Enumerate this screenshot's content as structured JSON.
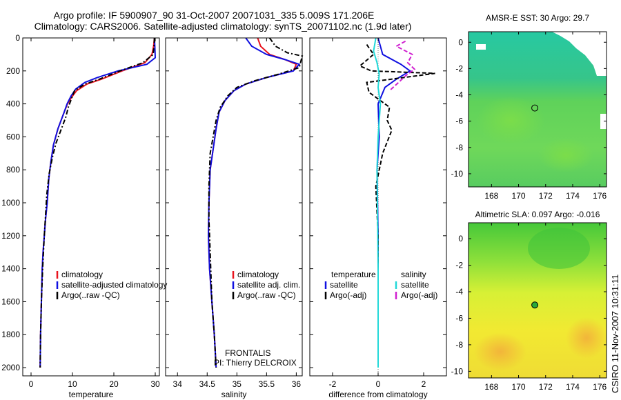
{
  "figure": {
    "title_line1": "Argo profile: IF 5900907_90 31-Oct-2007 20071031_335 5.009S 171.206E",
    "title_line2": "Climatology: CARS2006. Satellite-adjusted climatology: synTS_20071102.nc (1.9d later)",
    "credit": "CSIRO 11-Nov-2007 10:31:11",
    "frontalis_line1": "FRONTALIS",
    "frontalis_line2": "PI: Thierry DELCROIX"
  },
  "colors": {
    "climatology": "#e8141e",
    "satellite": "#1010e0",
    "argo": "#000000",
    "salinity_satellite": "#22d8d8",
    "salinity_argo": "#d020d0"
  },
  "chart_data": [
    {
      "type": "line",
      "xlabel": "temperature",
      "xlim": [
        -2,
        31
      ],
      "ylim": [
        0,
        2050
      ],
      "y_reversed": true,
      "xticks": [
        0,
        10,
        20,
        30
      ],
      "yticks": [
        0,
        200,
        400,
        600,
        800,
        1000,
        1200,
        1400,
        1600,
        1800,
        2000
      ],
      "legend": [
        "climatology",
        "satellite-adjusted climatology",
        "Argo(..raw -QC)"
      ],
      "series": [
        {
          "key": "clim",
          "style": "solid",
          "color": "#e8141e",
          "x": [
            29.8,
            29.6,
            29.2,
            27.5,
            22.0,
            17.0,
            13.5,
            11.0,
            9.8,
            8.8,
            8.0,
            6.5,
            5.4,
            4.8,
            4.3,
            3.9,
            3.5,
            3.2,
            2.9,
            2.7,
            2.5,
            2.3,
            2.2
          ],
          "y": [
            0,
            50,
            100,
            150,
            200,
            250,
            280,
            320,
            360,
            400,
            450,
            550,
            650,
            750,
            850,
            1000,
            1100,
            1200,
            1300,
            1400,
            1600,
            1800,
            2000
          ]
        },
        {
          "key": "sat",
          "style": "solid",
          "color": "#1010e0",
          "x": [
            29.8,
            29.9,
            30.0,
            28.0,
            21.0,
            16.0,
            13.0,
            10.8,
            9.7,
            8.7,
            8.0,
            6.5,
            5.4,
            4.8,
            4.3,
            3.9,
            3.5,
            3.2,
            2.9,
            2.7,
            2.5,
            2.3,
            2.2
          ],
          "y": [
            0,
            50,
            120,
            160,
            200,
            240,
            270,
            310,
            350,
            400,
            450,
            550,
            650,
            750,
            850,
            1000,
            1100,
            1200,
            1300,
            1400,
            1600,
            1800,
            2000
          ]
        },
        {
          "key": "argo",
          "style": "dashdot",
          "color": "#000000",
          "x": [
            29.8,
            29.7,
            29.5,
            27.0,
            21.5,
            16.5,
            13.0,
            10.5,
            9.9,
            9.0,
            8.4,
            7.2,
            6.0,
            5.2,
            4.4,
            3.8,
            3.2,
            2.8,
            2.5,
            2.3,
            2.2
          ],
          "y": [
            0,
            50,
            100,
            150,
            200,
            250,
            280,
            320,
            360,
            420,
            480,
            560,
            640,
            720,
            820,
            950,
            1200,
            1400,
            1600,
            1800,
            2000
          ]
        }
      ]
    },
    {
      "type": "line",
      "xlabel": "salinity",
      "xlim": [
        33.8,
        36.1
      ],
      "ylim": [
        0,
        2050
      ],
      "y_reversed": true,
      "xticks": [
        34,
        34.5,
        35,
        35.5,
        36
      ],
      "legend": [
        "climatology",
        "satellite adj. clim.",
        "Argo(..raw -QC)"
      ],
      "series": [
        {
          "key": "clim",
          "style": "solid",
          "color": "#e8141e",
          "x": [
            35.35,
            35.4,
            35.55,
            35.8,
            36.0,
            35.95,
            35.5,
            35.15,
            34.95,
            34.8,
            34.7,
            34.65,
            34.55,
            34.53,
            34.52,
            34.54,
            34.58,
            34.62,
            34.65
          ],
          "y": [
            0,
            50,
            100,
            130,
            160,
            200,
            240,
            280,
            320,
            380,
            450,
            550,
            800,
            1000,
            1200,
            1400,
            1600,
            1800,
            2000
          ]
        },
        {
          "key": "sat",
          "style": "solid",
          "color": "#1010e0",
          "x": [
            35.15,
            35.25,
            35.5,
            35.8,
            36.05,
            35.95,
            35.5,
            35.15,
            34.95,
            34.8,
            34.7,
            34.65,
            34.55,
            34.53,
            34.52,
            34.54,
            34.58,
            34.62,
            34.65
          ],
          "y": [
            0,
            50,
            100,
            130,
            160,
            200,
            240,
            280,
            320,
            380,
            450,
            550,
            800,
            1000,
            1200,
            1400,
            1600,
            1800,
            2000
          ]
        },
        {
          "key": "argo",
          "style": "dashdot",
          "color": "#000000",
          "x": [
            35.55,
            35.65,
            35.85,
            36.1,
            36.05,
            35.7,
            35.3,
            35.0,
            34.85,
            34.72,
            34.65,
            34.55,
            34.53,
            34.53,
            34.55,
            34.58,
            34.62,
            34.65
          ],
          "y": [
            0,
            50,
            90,
            110,
            180,
            220,
            260,
            300,
            350,
            420,
            500,
            700,
            900,
            1100,
            1300,
            1600,
            1800,
            2000
          ]
        }
      ]
    },
    {
      "type": "line",
      "xlabel": "difference from climatology",
      "xlim": [
        -3,
        3
      ],
      "ylim": [
        0,
        2050
      ],
      "y_reversed": true,
      "xticks": [
        -2,
        0,
        2
      ],
      "legend_left_title": "temperature",
      "legend_right_title": "salinity",
      "legend_left": [
        "satellite",
        "Argo(-adj)"
      ],
      "legend_right": [
        "satellite",
        "Argo(-adj)"
      ],
      "series": [
        {
          "key": "temp_sat",
          "style": "solid",
          "color": "#1010e0",
          "x": [
            0.0,
            0.2,
            1.0,
            1.4,
            0.8,
            0.3,
            0.0,
            0.05,
            -0.05,
            0.0,
            0.0,
            0.0
          ],
          "y": [
            0,
            100,
            160,
            200,
            250,
            300,
            400,
            600,
            800,
            1200,
            1600,
            2000
          ]
        },
        {
          "key": "temp_argo",
          "style": "dashed",
          "color": "#000000",
          "x": [
            -0.5,
            -0.2,
            -0.8,
            -0.3,
            2.5,
            -0.5,
            -0.4,
            0.5,
            0.4,
            0.6,
            0.2,
            -0.1,
            0.0,
            0.0
          ],
          "y": [
            40,
            100,
            170,
            200,
            215,
            270,
            330,
            420,
            500,
            560,
            700,
            900,
            1200,
            2000
          ]
        },
        {
          "key": "sal_sat",
          "style": "solid",
          "color": "#22d8d8",
          "x": [
            -0.1,
            -0.2,
            -0.05,
            0.05,
            0.0,
            0.1,
            0.0,
            -0.05,
            0.0,
            0.0
          ],
          "y": [
            0,
            80,
            150,
            220,
            300,
            400,
            600,
            800,
            1400,
            2000
          ]
        },
        {
          "key": "sal_argo",
          "style": "dashed",
          "color": "#d020d0",
          "x": [
            1.2,
            0.8,
            1.5,
            1.3,
            1.6,
            1.2,
            0.9,
            0.5
          ],
          "y": [
            20,
            50,
            100,
            150,
            190,
            230,
            270,
            320
          ]
        }
      ]
    },
    {
      "type": "heatmap",
      "title": "AMSR-E SST: 30 Argo: 29.7",
      "xlim": [
        166.3,
        176.5
      ],
      "ylim": [
        -11,
        0.8
      ],
      "xticks": [
        168,
        170,
        172,
        174,
        176
      ],
      "yticks": [
        0,
        -2,
        -4,
        -6,
        -8,
        -10
      ],
      "marker": {
        "lon": 171.2,
        "lat": -5.0
      }
    },
    {
      "type": "heatmap",
      "title": "Altimetric SLA: 0.097 Argo: -0.016",
      "xlim": [
        166.3,
        176.5
      ],
      "ylim": [
        -10.5,
        1.2
      ],
      "xticks": [
        168,
        170,
        172,
        174,
        176
      ],
      "yticks": [
        0,
        -2,
        -4,
        -6,
        -8,
        -10
      ],
      "marker": {
        "lon": 171.2,
        "lat": -5.0
      }
    }
  ]
}
